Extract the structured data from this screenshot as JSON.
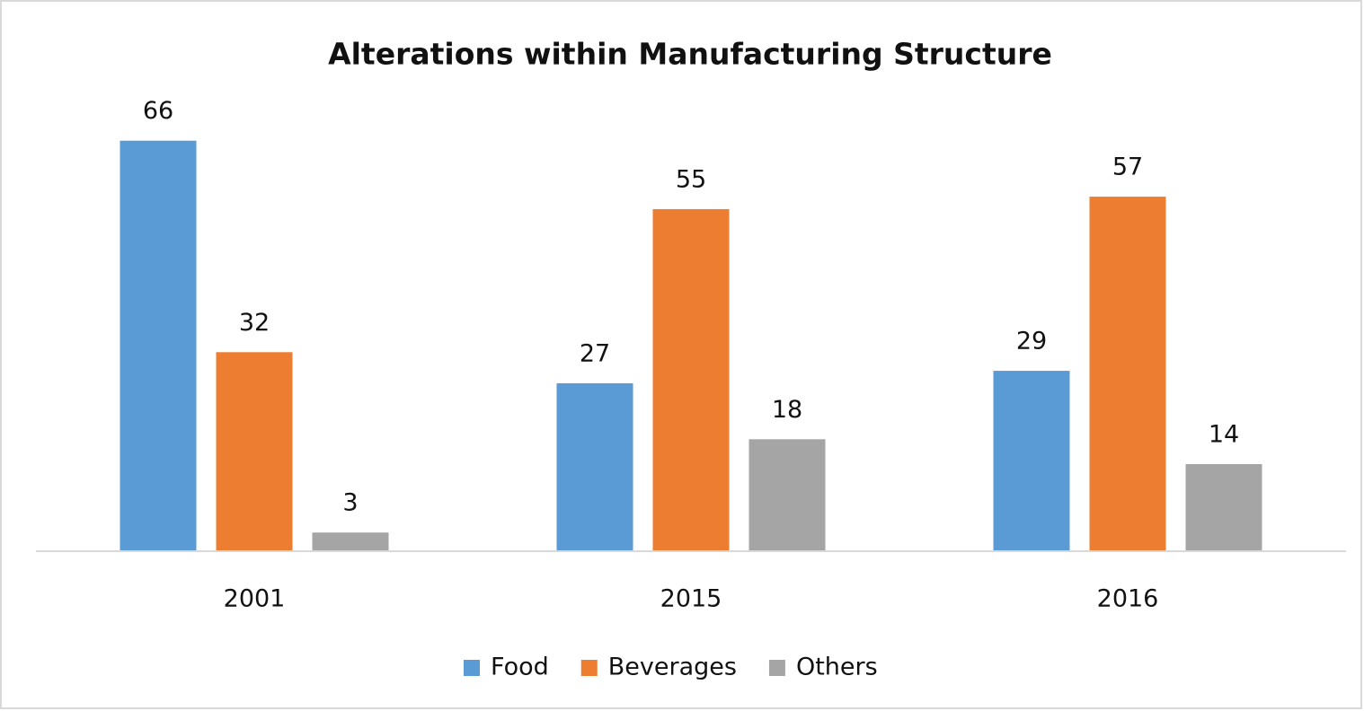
{
  "chart_data": {
    "type": "bar",
    "title": "Alterations within Manufacturing Structure",
    "categories": [
      "2001",
      "2015",
      "2016"
    ],
    "series": [
      {
        "name": "Food",
        "color": "#5b9bd5",
        "values": [
          66,
          27,
          29
        ]
      },
      {
        "name": "Beverages",
        "color": "#ed7d31",
        "values": [
          32,
          55,
          57
        ]
      },
      {
        "name": "Others",
        "color": "#a5a5a5",
        "values": [
          3,
          18,
          14
        ]
      }
    ],
    "ylim": [
      0,
      70
    ],
    "legend": "bottom"
  }
}
